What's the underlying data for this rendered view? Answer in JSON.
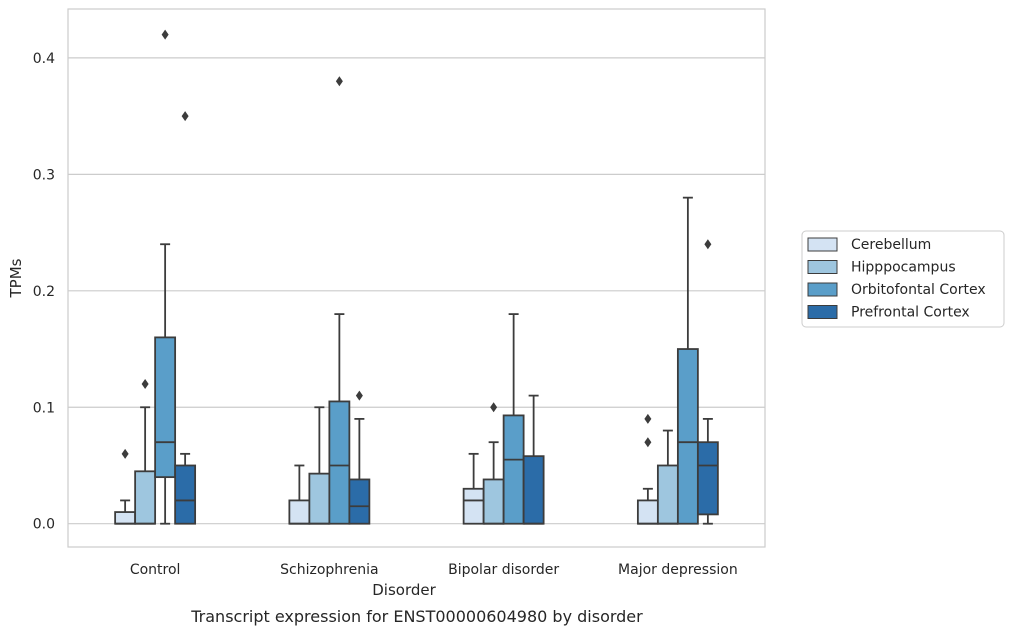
{
  "caption": "Transcript expression for ENST00000604980 by disorder",
  "chart_data": {
    "type": "box",
    "xlabel": "Disorder",
    "ylabel": "TPMs",
    "ylim": [
      -0.02,
      0.442
    ],
    "y_ticks": [
      0.0,
      0.1,
      0.2,
      0.3,
      0.4
    ],
    "y_tick_labels": [
      "0.0",
      "0.1",
      "0.2",
      "0.3",
      "0.4"
    ],
    "grid": "horizontal",
    "legend_position": "right",
    "categories": [
      "Control",
      "Schizophrenia",
      "Bipolar disorder",
      "Major depression"
    ],
    "series": [
      {
        "name": "Cerebellum",
        "color": "#d4e3f3",
        "boxes": [
          {
            "whisker_low": 0.0,
            "q1": 0.0,
            "median": 0.0,
            "q3": 0.01,
            "whisker_high": 0.02,
            "outliers": [
              0.06
            ]
          },
          {
            "whisker_low": 0.0,
            "q1": 0.0,
            "median": 0.0,
            "q3": 0.02,
            "whisker_high": 0.05,
            "outliers": []
          },
          {
            "whisker_low": 0.0,
            "q1": 0.0,
            "median": 0.02,
            "q3": 0.03,
            "whisker_high": 0.06,
            "outliers": []
          },
          {
            "whisker_low": 0.0,
            "q1": 0.0,
            "median": 0.0,
            "q3": 0.02,
            "whisker_high": 0.03,
            "outliers": [
              0.07,
              0.09
            ]
          }
        ]
      },
      {
        "name": "Hipppocampus",
        "color": "#9ec6df",
        "boxes": [
          {
            "whisker_low": 0.0,
            "q1": 0.0,
            "median": 0.0,
            "q3": 0.045,
            "whisker_high": 0.1,
            "outliers": [
              0.12
            ]
          },
          {
            "whisker_low": 0.0,
            "q1": 0.0,
            "median": 0.0,
            "q3": 0.043,
            "whisker_high": 0.1,
            "outliers": []
          },
          {
            "whisker_low": 0.0,
            "q1": 0.0,
            "median": 0.0,
            "q3": 0.038,
            "whisker_high": 0.07,
            "outliers": [
              0.1
            ]
          },
          {
            "whisker_low": 0.0,
            "q1": 0.0,
            "median": 0.0,
            "q3": 0.05,
            "whisker_high": 0.08,
            "outliers": []
          }
        ]
      },
      {
        "name": "Orbitofontal Cortex",
        "color": "#5a9ec9",
        "boxes": [
          {
            "whisker_low": 0.0,
            "q1": 0.04,
            "median": 0.07,
            "q3": 0.16,
            "whisker_high": 0.24,
            "outliers": [
              0.42
            ]
          },
          {
            "whisker_low": 0.0,
            "q1": 0.0,
            "median": 0.05,
            "q3": 0.105,
            "whisker_high": 0.18,
            "outliers": [
              0.38
            ]
          },
          {
            "whisker_low": 0.0,
            "q1": 0.0,
            "median": 0.055,
            "q3": 0.093,
            "whisker_high": 0.18,
            "outliers": []
          },
          {
            "whisker_low": 0.0,
            "q1": 0.0,
            "median": 0.07,
            "q3": 0.15,
            "whisker_high": 0.28,
            "outliers": []
          }
        ]
      },
      {
        "name": "Prefrontal Cortex",
        "color": "#2b6ca8",
        "boxes": [
          {
            "whisker_low": 0.0,
            "q1": 0.0,
            "median": 0.02,
            "q3": 0.05,
            "whisker_high": 0.06,
            "outliers": [
              0.35
            ]
          },
          {
            "whisker_low": 0.0,
            "q1": 0.0,
            "median": 0.015,
            "q3": 0.038,
            "whisker_high": 0.09,
            "outliers": [
              0.11
            ]
          },
          {
            "whisker_low": 0.0,
            "q1": 0.0,
            "median": 0.0,
            "q3": 0.058,
            "whisker_high": 0.11,
            "outliers": []
          },
          {
            "whisker_low": 0.0,
            "q1": 0.008,
            "median": 0.05,
            "q3": 0.07,
            "whisker_high": 0.09,
            "outliers": [
              0.24
            ]
          }
        ]
      }
    ]
  }
}
